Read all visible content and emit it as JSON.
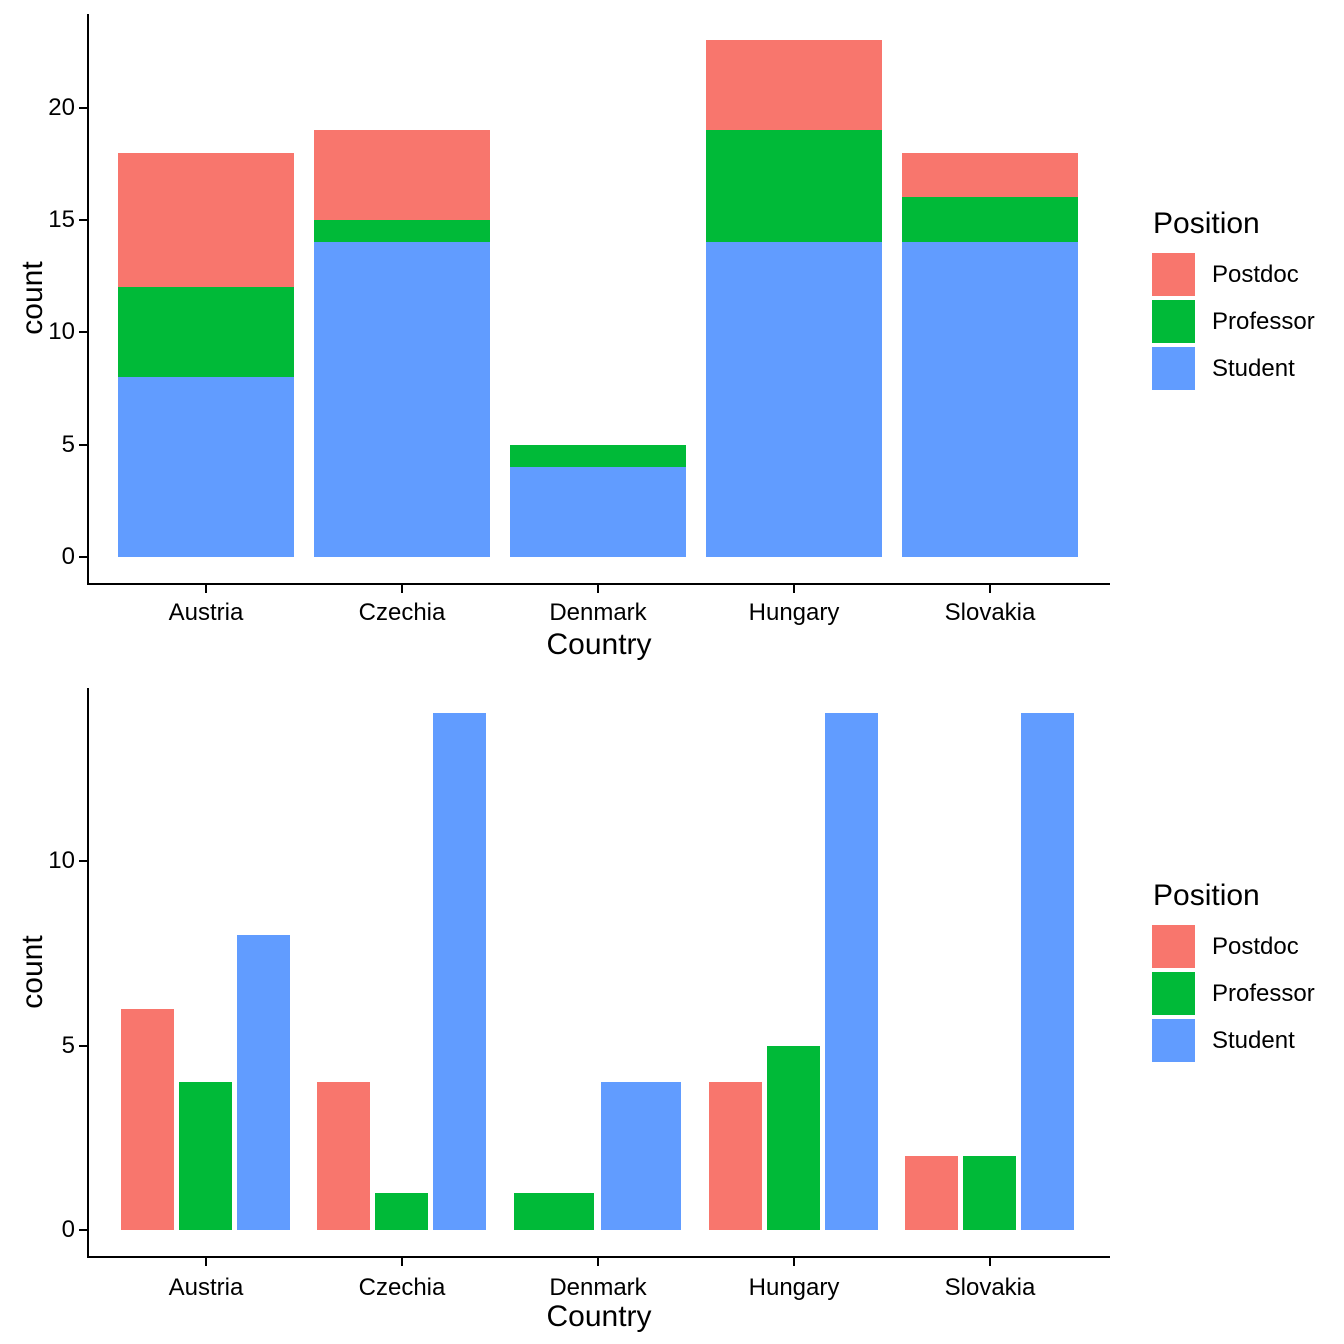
{
  "figure": {
    "background": "#FFFFFF",
    "text_color": "#000000",
    "axis_color": "#000000",
    "palette": {
      "Postdoc": "#F8766D",
      "Professor": "#00BA38",
      "Student": "#619CFF"
    }
  },
  "legend": {
    "title": "Position",
    "position": "right",
    "entries": [
      {
        "label": "Postdoc",
        "color": "#F8766D"
      },
      {
        "label": "Professor",
        "color": "#00BA38"
      },
      {
        "label": "Student",
        "color": "#619CFF"
      }
    ]
  },
  "chart_data": [
    {
      "type": "bar",
      "subtype": "stacked",
      "title": "",
      "xlabel": "Country",
      "ylabel": "count",
      "legend_title": "Position",
      "legend_position": "right",
      "grid": false,
      "categories": [
        "Austria",
        "Czechia",
        "Denmark",
        "Hungary",
        "Slovakia"
      ],
      "series": [
        {
          "name": "Postdoc",
          "color": "#F8766D",
          "values": [
            6,
            4,
            0,
            4,
            2
          ]
        },
        {
          "name": "Professor",
          "color": "#00BA38",
          "values": [
            4,
            1,
            1,
            5,
            2
          ]
        },
        {
          "name": "Student",
          "color": "#619CFF",
          "values": [
            8,
            14,
            4,
            14,
            14
          ]
        }
      ],
      "stack_order_bottom_to_top": [
        "Student",
        "Professor",
        "Postdoc"
      ],
      "stack_totals": [
        18,
        19,
        5,
        23,
        18
      ],
      "yticks": [
        0,
        5,
        10,
        15,
        20
      ],
      "ylim": [
        0,
        23
      ]
    },
    {
      "type": "bar",
      "subtype": "grouped",
      "title": "",
      "xlabel": "Country",
      "ylabel": "count",
      "legend_title": "Position",
      "legend_position": "right",
      "grid": false,
      "categories": [
        "Austria",
        "Czechia",
        "Denmark",
        "Hungary",
        "Slovakia"
      ],
      "series": [
        {
          "name": "Postdoc",
          "color": "#F8766D",
          "values": [
            6,
            4,
            0,
            4,
            2
          ]
        },
        {
          "name": "Professor",
          "color": "#00BA38",
          "values": [
            4,
            1,
            1,
            5,
            2
          ]
        },
        {
          "name": "Student",
          "color": "#619CFF",
          "values": [
            8,
            14,
            4,
            14,
            14
          ]
        }
      ],
      "zero_count_bars_omitted": true,
      "yticks": [
        0,
        5,
        10
      ],
      "ylim": [
        0,
        14
      ]
    }
  ]
}
